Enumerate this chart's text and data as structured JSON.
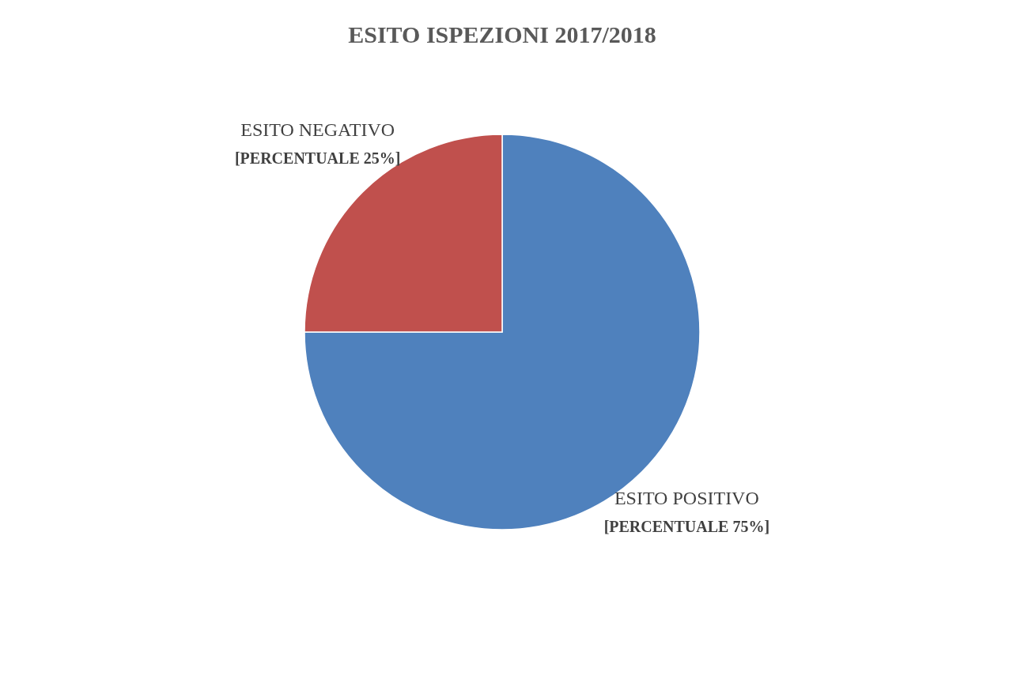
{
  "chart_data": {
    "type": "pie",
    "title": "ESITO ISPEZIONI 2017/2018",
    "categories": [
      "ESITO POSITIVO",
      "ESITO NEGATIVO"
    ],
    "values": [
      75,
      25
    ],
    "colors": [
      "#4f81bd",
      "#c0504d"
    ],
    "value_labels": [
      "[PERCENTUALE 75%]",
      "[PERCENTUALE 25%]"
    ],
    "legend": false
  }
}
